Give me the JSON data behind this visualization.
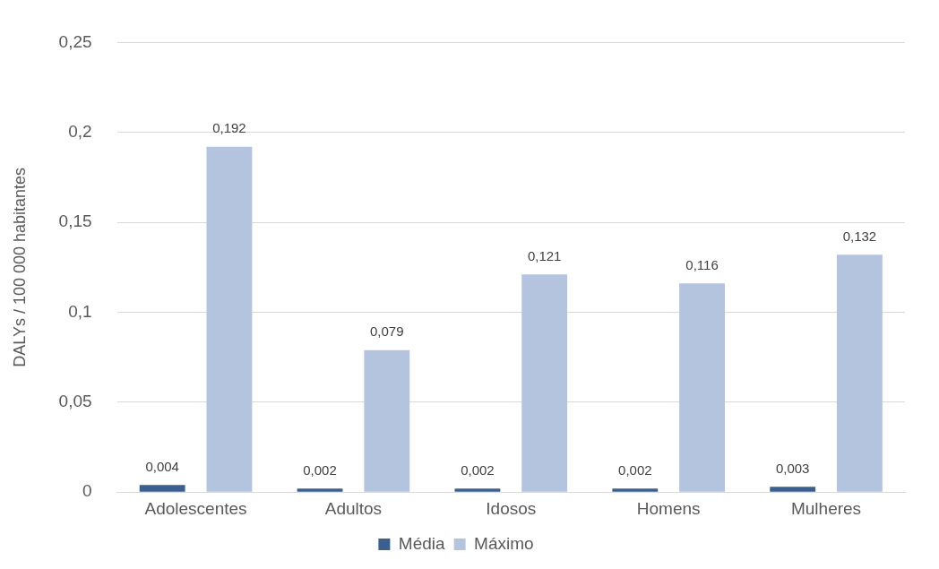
{
  "chart_data": {
    "type": "bar",
    "ylabel": "DALYs / 100 000 habitantes",
    "categories": [
      "Adolescentes",
      "Adultos",
      "Idosos",
      "Homens",
      "Mulheres"
    ],
    "series": [
      {
        "name": "Média",
        "color": "#3b5f8e",
        "values": [
          0.004,
          0.002,
          0.002,
          0.002,
          0.003
        ],
        "value_labels": [
          "0,004",
          "0,002",
          "0,002",
          "0,002",
          "0,003"
        ]
      },
      {
        "name": "Máximo",
        "color": "#b4c3de",
        "values": [
          0.192,
          0.079,
          0.121,
          0.116,
          0.132
        ],
        "value_labels": [
          "0,192",
          "0,079",
          "0,121",
          "0,116",
          "0,132"
        ]
      }
    ],
    "ylim": [
      0,
      0.25
    ],
    "yticks": [
      {
        "value": 0,
        "label": "0"
      },
      {
        "value": 0.05,
        "label": "0,05"
      },
      {
        "value": 0.1,
        "label": "0,1"
      },
      {
        "value": 0.15,
        "label": "0,15"
      },
      {
        "value": 0.2,
        "label": "0,2"
      },
      {
        "value": 0.25,
        "label": "0,25"
      }
    ],
    "grid": "y",
    "legend": "bottom"
  }
}
